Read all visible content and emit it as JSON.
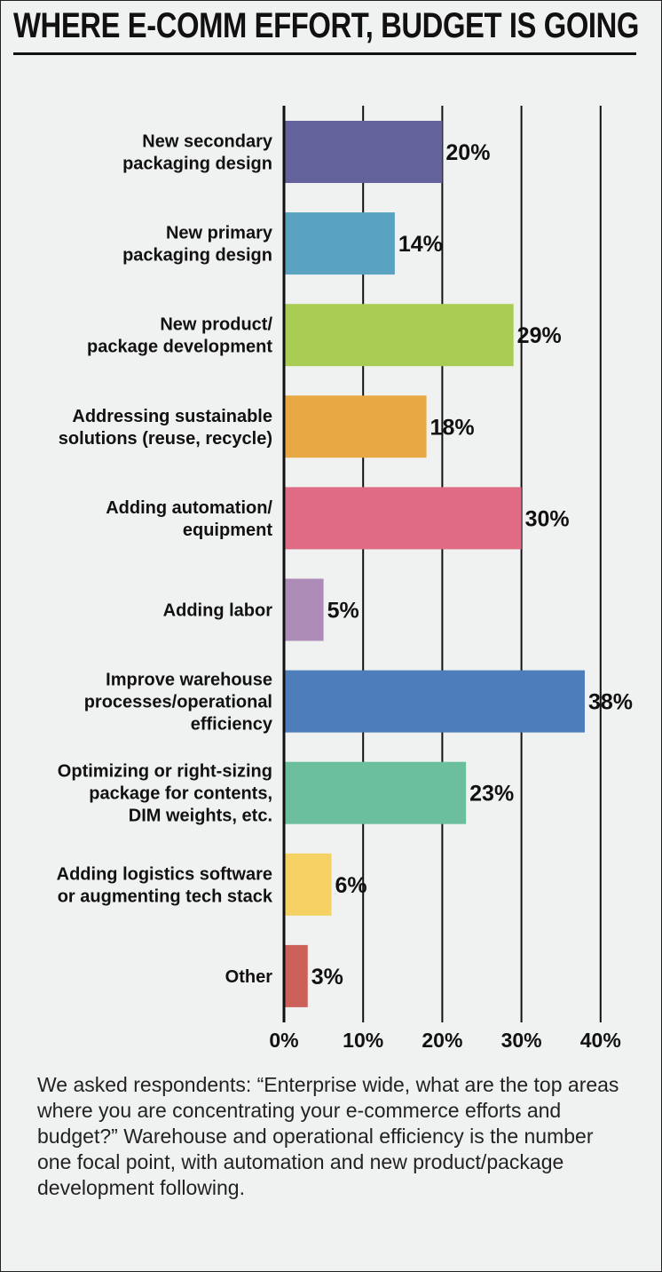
{
  "chart_data": {
    "type": "bar",
    "orientation": "horizontal",
    "title": "WHERE E-COMM EFFORT, BUDGET IS GOING",
    "categories": [
      [
        "New secondary",
        "packaging design"
      ],
      [
        "New primary",
        "packaging design"
      ],
      [
        "New product/",
        "package development"
      ],
      [
        "Addressing sustainable",
        "solutions (reuse, recycle)"
      ],
      [
        "Adding automation/",
        "equipment"
      ],
      [
        "Adding labor"
      ],
      [
        "Improve warehouse",
        "processes/operational",
        "efficiency"
      ],
      [
        "Optimizing or right-sizing",
        "package for contents,",
        "DIM weights, etc."
      ],
      [
        "Adding logistics software",
        "or augmenting tech stack"
      ],
      [
        "Other"
      ]
    ],
    "values": [
      20,
      14,
      29,
      18,
      30,
      5,
      38,
      23,
      6,
      3
    ],
    "value_labels": [
      "20%",
      "14%",
      "29%",
      "18%",
      "30%",
      "5%",
      "38%",
      "23%",
      "6%",
      "3%"
    ],
    "colors": [
      "#63629b",
      "#5aa3c0",
      "#a9cc55",
      "#e8a843",
      "#e06b85",
      "#ae8cb8",
      "#4e7dbb",
      "#6cbf9d",
      "#f5d263",
      "#cc6159"
    ],
    "xlim": [
      0,
      40
    ],
    "x_ticks": [
      0,
      10,
      20,
      30,
      40
    ],
    "x_tick_labels": [
      "0%",
      "10%",
      "20%",
      "30%",
      "40%"
    ],
    "xlabel": "",
    "ylabel": "",
    "grid": true,
    "legend": "none"
  },
  "caption": "We asked respondents: “Enterprise wide, what are the top areas where you are concentrating your e-commerce efforts and budget?” Warehouse and operational efficiency is the number one focal point, with automation and new product/package development following."
}
